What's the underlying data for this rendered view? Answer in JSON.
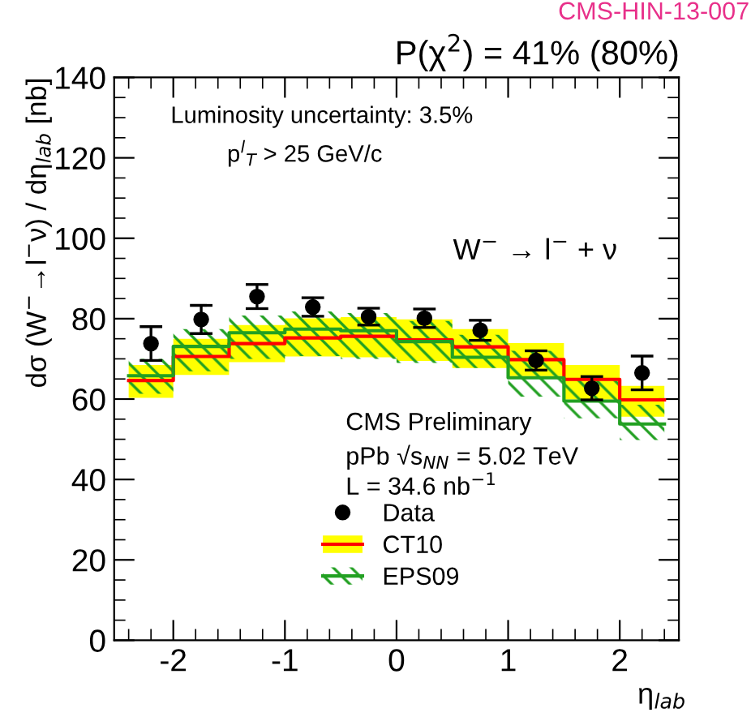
{
  "chart_data": {
    "type": "step",
    "title": "P(χ$^{2}$) = 41% (80%)",
    "xlabel": "η$_{lab}$",
    "ylabel": "dσ (W$^{−}$→l$^{−}$ν) / dη$_{lab}$ [nb]",
    "annotations": [
      "CMS-HIN-13-007",
      "Luminosity uncertainty: 3.5%",
      "p$^{l}$$_{T}$ > 25 GeV/c",
      "W$^{−}$ → l$^{−}$ + ν",
      "CMS Preliminary",
      "pPb √s$_{NN}$ = 5.02 TeV",
      "L = 34.6 nb$^{−1}$"
    ],
    "x": [
      -2.2,
      -1.75,
      -1.25,
      -0.75,
      -0.25,
      0.25,
      0.75,
      1.25,
      1.75,
      2.2
    ],
    "series": [
      {
        "name": "CT10",
        "color": "#ff0000",
        "marker": "none",
        "x": [
          -2.4,
          -2.0,
          -1.5,
          -1.0,
          -0.5,
          0.0,
          0.5,
          1.0,
          1.5,
          2.0,
          2.4
        ],
        "values": [
          64.6,
          70.6,
          73.8,
          75.2,
          75.6,
          74.7,
          73.0,
          69.8,
          64.9,
          59.8,
          59.8
        ],
        "lower": [
          60.3,
          66.0,
          69.2,
          70.6,
          70.4,
          69.5,
          67.7,
          65.7,
          59.9,
          55.6,
          55.6
        ],
        "upper": [
          68.5,
          75.0,
          78.4,
          80.1,
          80.4,
          79.8,
          77.4,
          73.9,
          68.5,
          63.3,
          63.3
        ]
      },
      {
        "name": "EPS09",
        "color": "#22a022",
        "marker": "none",
        "x": [
          -2.4,
          -2.0,
          -1.5,
          -1.0,
          -0.5,
          0.0,
          0.5,
          1.0,
          1.5,
          2.0,
          2.4
        ],
        "values": [
          65.8,
          73.1,
          76.5,
          77.4,
          77.0,
          74.3,
          70.4,
          65.3,
          59.5,
          53.8,
          53.8
        ],
        "lower": [
          61.3,
          66.9,
          70.0,
          70.7,
          70.0,
          69.0,
          67.7,
          60.6,
          55.2,
          49.8,
          49.8
        ],
        "upper": [
          70.0,
          77.4,
          80.8,
          81.8,
          81.4,
          79.4,
          76.0,
          72.0,
          64.6,
          58.6,
          58.6
        ]
      },
      {
        "name": "Data",
        "type": "scatter",
        "color": "#000000",
        "marker": "circle",
        "values": [
          73.8,
          79.8,
          85.5,
          82.9,
          80.5,
          80.1,
          77.1,
          69.6,
          62.7,
          66.5
        ],
        "errors": [
          4.2,
          3.5,
          3.0,
          2.3,
          2.1,
          2.3,
          2.5,
          2.4,
          2.9,
          4.2
        ]
      }
    ],
    "xlim": [
      -2.53,
      2.53
    ],
    "ylim": [
      0,
      140
    ],
    "xticks": [
      -2,
      -1,
      0,
      1,
      2
    ],
    "yticks": [
      0,
      20,
      40,
      60,
      80,
      100,
      120,
      140
    ],
    "grid": false,
    "legend": "bottom"
  }
}
